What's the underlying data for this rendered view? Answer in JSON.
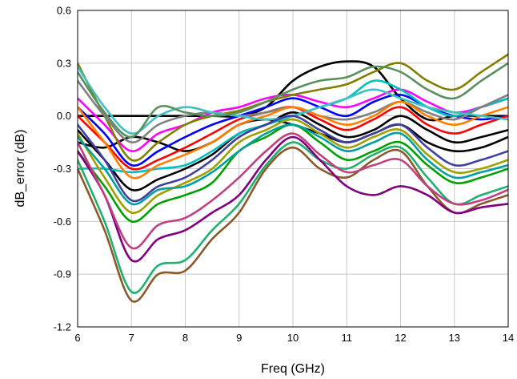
{
  "chart_data": {
    "type": "line",
    "xlabel": "Freq (GHz)",
    "ylabel": "dB_error (dB)",
    "xlim": [
      6,
      14
    ],
    "ylim": [
      -1.2,
      0.6
    ],
    "grid": true,
    "legend": "none",
    "x_ticks": [
      6,
      7,
      8,
      9,
      10,
      11,
      12,
      13,
      14
    ],
    "x_tick_labels": [
      "6",
      "7",
      "8",
      "9",
      "10",
      "11",
      "12",
      "13",
      "14"
    ],
    "y_ticks": [
      -1.2,
      -0.9,
      -0.6,
      -0.3,
      0.0,
      0.3,
      0.6
    ],
    "y_tick_labels": [
      "-1.2",
      "-0.9",
      "-0.6",
      "-0.3",
      "0.0",
      "0.3",
      "0.6"
    ],
    "x": [
      6,
      6.5,
      7,
      7.5,
      8,
      8.5,
      9,
      9.5,
      10,
      10.5,
      11,
      11.5,
      12,
      12.5,
      13,
      13.5,
      14
    ],
    "series": [
      {
        "color": "#000000",
        "values": [
          0.0,
          0.0,
          0.0,
          0.0,
          0.0,
          0.0,
          0.0,
          0.05,
          0.2,
          0.28,
          0.31,
          0.28,
          0.1,
          -0.02,
          0.0,
          0.0,
          0.0
        ]
      },
      {
        "color": "#000000",
        "values": [
          -0.15,
          -0.18,
          -0.12,
          -0.15,
          -0.2,
          -0.15,
          -0.05,
          -0.02,
          -0.05,
          -0.1,
          -0.15,
          -0.1,
          -0.05,
          -0.15,
          -0.2,
          -0.18,
          -0.12
        ]
      },
      {
        "color": "#000000",
        "values": [
          -0.08,
          -0.25,
          -0.42,
          -0.36,
          -0.3,
          -0.22,
          -0.1,
          -0.05,
          0.02,
          -0.05,
          -0.12,
          -0.08,
          0.0,
          -0.08,
          -0.15,
          -0.12,
          -0.08
        ]
      },
      {
        "color": "#0000ff",
        "values": [
          0.05,
          -0.1,
          -0.28,
          -0.2,
          -0.12,
          -0.05,
          0.0,
          0.05,
          0.1,
          0.05,
          0.0,
          0.08,
          0.12,
          0.05,
          0.0,
          -0.02,
          0.0
        ]
      },
      {
        "color": "#ff0000",
        "values": [
          0.0,
          -0.15,
          -0.3,
          -0.25,
          -0.18,
          -0.1,
          -0.02,
          0.02,
          0.05,
          -0.02,
          -0.08,
          -0.02,
          0.05,
          -0.05,
          -0.1,
          -0.05,
          0.0
        ]
      },
      {
        "color": "#00a000",
        "values": [
          -0.2,
          -0.4,
          -0.6,
          -0.5,
          -0.45,
          -0.38,
          -0.2,
          -0.12,
          -0.05,
          -0.15,
          -0.25,
          -0.2,
          -0.15,
          -0.28,
          -0.38,
          -0.35,
          -0.3
        ]
      },
      {
        "color": "#ff00ff",
        "values": [
          0.1,
          -0.05,
          -0.2,
          -0.1,
          -0.05,
          0.02,
          0.05,
          0.1,
          0.12,
          0.08,
          0.05,
          0.1,
          0.15,
          0.08,
          0.02,
          0.05,
          0.1
        ]
      },
      {
        "color": "#00c0c0",
        "values": [
          -0.3,
          -0.3,
          -0.32,
          -0.3,
          -0.28,
          -0.2,
          -0.1,
          -0.05,
          0.0,
          0.05,
          0.1,
          0.2,
          0.15,
          0.05,
          0.0,
          0.05,
          0.1
        ]
      },
      {
        "color": "#808000",
        "values": [
          0.3,
          0.0,
          -0.25,
          -0.15,
          -0.05,
          0.0,
          0.03,
          0.08,
          0.12,
          0.15,
          0.18,
          0.25,
          0.3,
          0.2,
          0.15,
          0.25,
          0.35
        ]
      },
      {
        "color": "#8b5a2b",
        "values": [
          -0.3,
          -0.65,
          -1.05,
          -0.9,
          -0.88,
          -0.7,
          -0.55,
          -0.3,
          -0.18,
          -0.3,
          -0.35,
          -0.25,
          -0.2,
          -0.4,
          -0.55,
          -0.5,
          -0.45
        ]
      },
      {
        "color": "#20b070",
        "values": [
          -0.25,
          -0.6,
          -1.0,
          -0.85,
          -0.82,
          -0.65,
          -0.5,
          -0.28,
          -0.15,
          -0.25,
          -0.3,
          -0.22,
          -0.18,
          -0.35,
          -0.5,
          -0.45,
          -0.4
        ]
      },
      {
        "color": "#800080",
        "values": [
          -0.2,
          -0.45,
          -0.82,
          -0.7,
          -0.65,
          -0.55,
          -0.45,
          -0.25,
          -0.12,
          -0.25,
          -0.4,
          -0.45,
          -0.4,
          -0.45,
          -0.55,
          -0.52,
          -0.5
        ]
      },
      {
        "color": "#808080",
        "values": [
          0.2,
          0.0,
          -0.15,
          -0.05,
          0.0,
          0.02,
          0.0,
          0.02,
          0.05,
          0.0,
          -0.02,
          0.02,
          0.08,
          0.02,
          -0.02,
          0.05,
          0.12
        ]
      },
      {
        "color": "#ff8000",
        "values": [
          0.05,
          -0.15,
          -0.35,
          -0.28,
          -0.22,
          -0.15,
          -0.05,
          0.0,
          0.05,
          0.0,
          -0.05,
          0.0,
          0.08,
          0.0,
          -0.05,
          0.0,
          0.05
        ]
      },
      {
        "color": "#40c0c0",
        "values": [
          0.28,
          0.05,
          -0.1,
          0.0,
          0.05,
          0.02,
          0.0,
          -0.02,
          0.0,
          0.05,
          0.1,
          0.15,
          0.1,
          0.05,
          0.02,
          0.0,
          -0.02
        ]
      },
      {
        "color": "#5a9060",
        "values": [
          0.25,
          0.02,
          -0.12,
          0.05,
          0.02,
          0.0,
          0.02,
          0.08,
          0.15,
          0.2,
          0.22,
          0.28,
          0.25,
          0.15,
          0.1,
          0.2,
          0.3
        ]
      },
      {
        "color": "#a0a000",
        "values": [
          -0.1,
          -0.35,
          -0.55,
          -0.45,
          -0.38,
          -0.3,
          -0.15,
          -0.08,
          -0.02,
          -0.1,
          -0.18,
          -0.12,
          -0.08,
          -0.22,
          -0.32,
          -0.3,
          -0.25
        ]
      },
      {
        "color": "#4040a0",
        "values": [
          -0.05,
          -0.25,
          -0.48,
          -0.4,
          -0.35,
          -0.25,
          -0.12,
          -0.05,
          0.0,
          -0.08,
          -0.15,
          -0.1,
          -0.05,
          -0.18,
          -0.28,
          -0.25,
          -0.2
        ]
      },
      {
        "color": "#c04080",
        "values": [
          -0.15,
          -0.45,
          -0.75,
          -0.62,
          -0.58,
          -0.48,
          -0.35,
          -0.2,
          -0.1,
          -0.22,
          -0.32,
          -0.28,
          -0.25,
          -0.4,
          -0.5,
          -0.48,
          -0.42
        ]
      },
      {
        "color": "#00a0a0",
        "values": [
          -0.12,
          -0.3,
          -0.5,
          -0.42,
          -0.4,
          -0.32,
          -0.2,
          -0.1,
          -0.05,
          -0.12,
          -0.2,
          -0.15,
          -0.1,
          -0.25,
          -0.35,
          -0.32,
          -0.28
        ]
      }
    ]
  }
}
